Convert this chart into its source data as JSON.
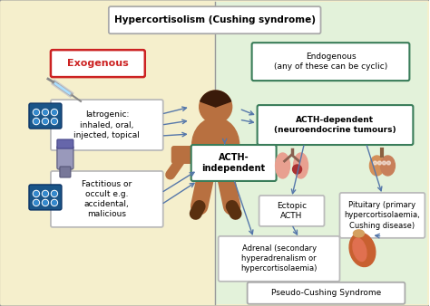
{
  "bg_left_color": "#f5efcc",
  "bg_right_color": "#e3f2da",
  "border_color": "#888888",
  "box_border_green": "#3a7d5a",
  "box_border_red": "#cc2222",
  "box_border_gray": "#aaaaaa",
  "arrow_color": "#5577aa",
  "title": "Hypercortisolism (Cushing syndrome)",
  "exogenous_text": "Exogenous",
  "endogenous_text": "Endogenous\n(any of these can be cyclic)",
  "iatrogenic_text": "Iatrogenic:\ninhaled, oral,\ninjected, topical",
  "factitious_text": "Factitious or\noccult e.g.\naccidental,\nmalicious",
  "acth_dep_text": "ACTH-dependent\n(neuroendocrine tumours)",
  "acth_indep_text": "ACTH-\nindependent",
  "ectopic_text": "Ectopic\nACTH",
  "pituitary_text": "Pituitary (primary\nhypercortisolaemia,\nCushing disease)",
  "adrenal_text": "Adrenal (secondary\nhyperadrenalism or\nhypercortisolaemia)",
  "pseudo_text": "Pseudo-Cushing Syndrome",
  "human_color": "#b87040",
  "human_skin_dark": "#8b5a2b",
  "pill_color": "#2a6595",
  "pill_border": "#1a4a75",
  "lung_color": "#d4736a",
  "kidney_color": "#c86030",
  "pituitary_color": "#d4905a"
}
